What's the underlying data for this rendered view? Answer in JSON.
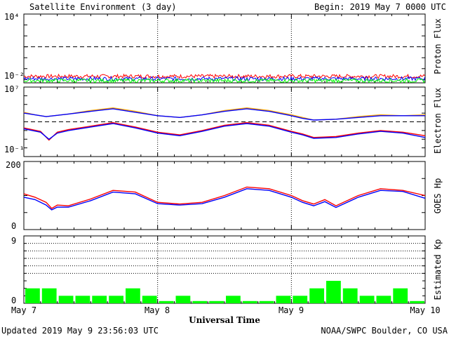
{
  "header": {
    "title": "Satellite Environment (3 day)",
    "begin": "Begin:  2019 May 7 0000 UTC"
  },
  "footer": {
    "updated": "Updated 2019 May  9 23:56:03 UTC",
    "credit": "NOAA/SWPC Boulder, CO USA"
  },
  "colors": {
    "red": "#ff0000",
    "blue": "#0000ff",
    "green": "#00ff00",
    "orange": "#ffa500"
  },
  "chart_data": [
    {
      "type": "line",
      "ylabel": "Proton Flux",
      "scale": "log",
      "y_ticks": [
        "10⁴",
        "10⁻²"
      ],
      "threshold_line": "dashed at 10 pfu",
      "series": [
        {
          "color": "#ff0000",
          "level": 0.02
        },
        {
          "color": "#0000ff",
          "level": 0.012
        },
        {
          "color": "#00ff00",
          "level": 0.008
        }
      ]
    },
    {
      "type": "line",
      "ylabel": "Electron Flux",
      "scale": "log",
      "y_ticks": [
        "10⁷",
        "10⁻¹"
      ],
      "threshold_line": "dashed at 1000",
      "series": [
        {
          "color": "#ffa500",
          "profile": "upper",
          "x_hours": [
            0,
            2,
            4,
            8,
            12,
            16,
            20,
            24,
            28,
            32,
            36,
            40,
            44,
            48,
            50,
            52,
            56,
            60,
            64,
            68,
            72
          ],
          "y_log": [
            4.1,
            3.8,
            3.6,
            3.9,
            4.3,
            4.6,
            4.2,
            3.7,
            3.5,
            3.8,
            4.3,
            4.6,
            4.3,
            3.8,
            3.5,
            3.2,
            3.3,
            3.6,
            3.8,
            3.7,
            3.8
          ]
        },
        {
          "color": "#0000ff",
          "profile": "upper",
          "x_hours": [
            0,
            2,
            4,
            8,
            12,
            16,
            20,
            24,
            28,
            32,
            36,
            40,
            44,
            48,
            50,
            52,
            56,
            60,
            64,
            68,
            72
          ],
          "y_log": [
            4.0,
            3.8,
            3.6,
            3.9,
            4.2,
            4.5,
            4.1,
            3.7,
            3.5,
            3.8,
            4.2,
            4.5,
            4.2,
            3.7,
            3.4,
            3.2,
            3.3,
            3.5,
            3.7,
            3.7,
            3.7
          ]
        },
        {
          "color": "#ff0000",
          "profile": "lower",
          "x_hours": [
            0,
            3,
            4.5,
            6,
            8,
            12,
            16,
            20,
            24,
            28,
            32,
            36,
            40,
            44,
            48,
            50,
            52,
            56,
            60,
            64,
            68,
            72
          ],
          "y_log": [
            2.3,
            1.9,
            0.9,
            1.8,
            2.1,
            2.5,
            2.9,
            2.4,
            1.8,
            1.5,
            2.0,
            2.6,
            2.9,
            2.6,
            1.9,
            1.6,
            1.2,
            1.3,
            1.7,
            2.0,
            1.8,
            1.4
          ]
        },
        {
          "color": "#0000ff",
          "profile": "lower",
          "x_hours": [
            0,
            3,
            4.5,
            6,
            8,
            12,
            16,
            20,
            24,
            28,
            32,
            36,
            40,
            44,
            48,
            50,
            52,
            56,
            60,
            64,
            68,
            72
          ],
          "y_log": [
            2.2,
            1.8,
            1.0,
            1.7,
            2.0,
            2.4,
            2.8,
            2.3,
            1.7,
            1.4,
            1.9,
            2.5,
            2.8,
            2.5,
            1.8,
            1.5,
            1.1,
            1.2,
            1.6,
            1.9,
            1.7,
            1.2
          ]
        }
      ]
    },
    {
      "type": "line",
      "ylabel": "GOES Hp",
      "y_ticks": [
        "200",
        "0"
      ],
      "ylim": [
        0,
        200
      ],
      "series": [
        {
          "color": "#ff0000",
          "x_hours": [
            0,
            2,
            4,
            5,
            6,
            8,
            12,
            16,
            20,
            24,
            28,
            32,
            36,
            40,
            44,
            48,
            50,
            52,
            54,
            56,
            60,
            64,
            68,
            72
          ],
          "y": [
            105,
            95,
            80,
            62,
            72,
            70,
            90,
            115,
            110,
            80,
            75,
            80,
            100,
            125,
            120,
            100,
            85,
            75,
            88,
            70,
            100,
            120,
            115,
            100
          ]
        },
        {
          "color": "#0000ff",
          "x_hours": [
            0,
            2,
            4,
            5,
            6,
            8,
            12,
            16,
            20,
            24,
            28,
            32,
            36,
            40,
            44,
            48,
            50,
            52,
            54,
            56,
            60,
            64,
            68,
            72
          ],
          "y": [
            95,
            88,
            72,
            58,
            66,
            66,
            85,
            110,
            105,
            76,
            72,
            76,
            95,
            120,
            115,
            95,
            80,
            70,
            82,
            65,
            95,
            115,
            112,
            92
          ]
        }
      ]
    },
    {
      "type": "bar",
      "ylabel": "Estimated Kp",
      "y_ticks": [
        "9",
        "0"
      ],
      "ylim": [
        0,
        9
      ],
      "categories_hours": [
        0,
        3,
        6,
        9,
        12,
        15,
        18,
        21,
        24,
        27,
        30,
        33,
        36,
        39,
        42,
        45,
        48,
        51,
        54,
        57,
        60,
        63,
        66,
        69
      ],
      "values": [
        2,
        2,
        1,
        1,
        1,
        1,
        2,
        1,
        0.3,
        1,
        0.3,
        0.3,
        1,
        0.3,
        0.3,
        1,
        1,
        2,
        3,
        2,
        1,
        1,
        2,
        0.3
      ]
    }
  ],
  "x_axis": {
    "label": "Universal Time",
    "ticks": [
      "May 7",
      "May 8",
      "May 9",
      "May 10"
    ]
  }
}
